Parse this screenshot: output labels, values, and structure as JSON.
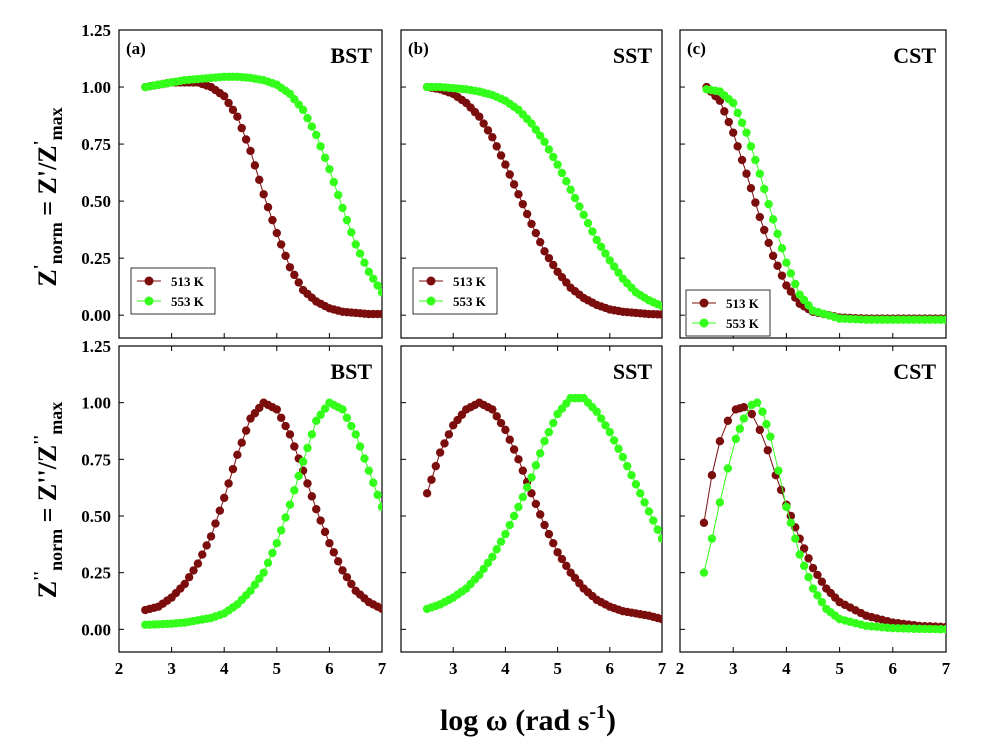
{
  "figure": {
    "xlabel_main": "log ω (rad s",
    "xlabel_sup": "-1",
    "xlabel_close": ")",
    "ylabel_top": {
      "z": "Z",
      "prime": "'",
      "sub": "norm",
      "eq": " = Z'/Z",
      "prime2": "'",
      "sub2": "max"
    },
    "ylabel_bottom": {
      "z": "Z",
      "prime": "''",
      "sub": "norm",
      "eq": " = Z''/Z",
      "prime2": "''",
      "sub2": "max"
    }
  },
  "colors": {
    "s513": "#7b0d0d",
    "s553": "#33ff1a"
  },
  "chart_data": [
    {
      "type": "line",
      "panel": "(a)",
      "title": "BST",
      "xlim": [
        2,
        7
      ],
      "ylim": [
        -0.1,
        1.25
      ],
      "yticks": [
        "0.00",
        "0.25",
        "0.50",
        "0.75",
        "1.00",
        "1.25"
      ],
      "xticks": [
        "2",
        "3",
        "4",
        "5",
        "6",
        "7"
      ],
      "legend": "bottom-left",
      "series": [
        {
          "name": "513 K",
          "x": [
            2.5,
            2.75,
            3.0,
            3.25,
            3.5,
            3.75,
            4.0,
            4.25,
            4.5,
            4.75,
            5.0,
            5.25,
            5.5,
            5.75,
            6.0,
            6.25,
            6.5,
            6.75,
            7.0
          ],
          "y": [
            1.0,
            1.01,
            1.02,
            1.02,
            1.02,
            1.0,
            0.96,
            0.87,
            0.72,
            0.53,
            0.36,
            0.21,
            0.11,
            0.06,
            0.03,
            0.015,
            0.01,
            0.005,
            0.005
          ]
        },
        {
          "name": "553 K",
          "x": [
            2.5,
            2.75,
            3.0,
            3.25,
            3.5,
            3.75,
            4.0,
            4.25,
            4.5,
            4.75,
            5.0,
            5.25,
            5.5,
            5.75,
            6.0,
            6.25,
            6.5,
            6.75,
            7.0
          ],
          "y": [
            1.0,
            1.01,
            1.02,
            1.03,
            1.035,
            1.04,
            1.045,
            1.045,
            1.04,
            1.03,
            1.01,
            0.97,
            0.9,
            0.79,
            0.64,
            0.47,
            0.31,
            0.19,
            0.1
          ]
        }
      ]
    },
    {
      "type": "line",
      "panel": "(b)",
      "title": "SST",
      "xlim": [
        2,
        7
      ],
      "ylim": [
        -0.1,
        1.25
      ],
      "xticks": [
        "3",
        "4",
        "5",
        "6",
        "7"
      ],
      "legend": "bottom-left",
      "series": [
        {
          "name": "513 K",
          "x": [
            2.5,
            2.75,
            3.0,
            3.25,
            3.5,
            3.75,
            4.0,
            4.25,
            4.5,
            4.75,
            5.0,
            5.25,
            5.5,
            5.75,
            6.0,
            6.25,
            6.5,
            6.75,
            7.0
          ],
          "y": [
            1.0,
            0.99,
            0.97,
            0.93,
            0.87,
            0.78,
            0.66,
            0.53,
            0.4,
            0.28,
            0.19,
            0.12,
            0.075,
            0.045,
            0.025,
            0.015,
            0.01,
            0.005,
            0.003
          ]
        },
        {
          "name": "553 K",
          "x": [
            2.5,
            2.75,
            3.0,
            3.25,
            3.5,
            3.75,
            4.0,
            4.25,
            4.5,
            4.75,
            5.0,
            5.25,
            5.5,
            5.75,
            6.0,
            6.25,
            6.5,
            6.75,
            7.0
          ],
          "y": [
            1.0,
            1.0,
            0.995,
            0.99,
            0.98,
            0.965,
            0.94,
            0.9,
            0.84,
            0.76,
            0.66,
            0.55,
            0.44,
            0.33,
            0.24,
            0.16,
            0.1,
            0.065,
            0.04
          ]
        }
      ]
    },
    {
      "type": "line",
      "panel": "(c)",
      "title": "CST",
      "xlim": [
        2,
        7
      ],
      "ylim": [
        -0.1,
        1.25
      ],
      "xticks": [
        "3",
        "4",
        "5",
        "6",
        "7"
      ],
      "legend": "bottom-left",
      "series": [
        {
          "name": "513 K",
          "x": [
            2.5,
            2.75,
            3.0,
            3.25,
            3.5,
            3.75,
            4.0,
            4.25,
            4.5,
            5.0,
            5.5,
            6.0,
            6.5,
            7.0
          ],
          "y": [
            1.0,
            0.94,
            0.8,
            0.62,
            0.43,
            0.26,
            0.13,
            0.05,
            0.015,
            -0.01,
            -0.015,
            -0.015,
            -0.015,
            -0.015
          ]
        },
        {
          "name": "553 K",
          "x": [
            2.5,
            2.75,
            3.0,
            3.25,
            3.5,
            3.75,
            4.0,
            4.25,
            4.5,
            5.0,
            5.5,
            6.0,
            6.5,
            7.0
          ],
          "y": [
            0.99,
            0.98,
            0.93,
            0.8,
            0.62,
            0.42,
            0.23,
            0.09,
            0.02,
            -0.015,
            -0.02,
            -0.02,
            -0.02,
            -0.02
          ]
        }
      ]
    },
    {
      "type": "line",
      "panel": "",
      "title": "BST",
      "xlim": [
        2,
        7
      ],
      "ylim": [
        -0.1,
        1.25
      ],
      "yticks": [
        "0.00",
        "0.25",
        "0.50",
        "0.75",
        "1.00",
        "1.25"
      ],
      "xticks": [
        "2",
        "3",
        "4",
        "5",
        "6",
        "7"
      ],
      "series": [
        {
          "name": "513 K",
          "x": [
            2.5,
            2.75,
            3.0,
            3.25,
            3.5,
            3.75,
            4.0,
            4.25,
            4.5,
            4.75,
            5.0,
            5.25,
            5.5,
            5.75,
            6.0,
            6.25,
            6.5,
            6.75,
            7.0
          ],
          "y": [
            0.085,
            0.1,
            0.14,
            0.2,
            0.29,
            0.41,
            0.58,
            0.77,
            0.93,
            1.0,
            0.97,
            0.86,
            0.7,
            0.53,
            0.38,
            0.26,
            0.17,
            0.12,
            0.09
          ]
        },
        {
          "name": "553 K",
          "x": [
            2.5,
            2.75,
            3.0,
            3.25,
            3.5,
            3.75,
            4.0,
            4.25,
            4.5,
            4.75,
            5.0,
            5.25,
            5.5,
            5.75,
            6.0,
            6.25,
            6.5,
            6.75,
            7.0
          ],
          "y": [
            0.02,
            0.022,
            0.025,
            0.03,
            0.04,
            0.05,
            0.07,
            0.11,
            0.17,
            0.25,
            0.38,
            0.55,
            0.74,
            0.92,
            1.0,
            0.97,
            0.86,
            0.7,
            0.54
          ]
        }
      ]
    },
    {
      "type": "line",
      "panel": "",
      "title": "SST",
      "xlim": [
        2,
        7
      ],
      "ylim": [
        -0.1,
        1.25
      ],
      "xticks": [
        "3",
        "4",
        "5",
        "6",
        "7"
      ],
      "series": [
        {
          "name": "513 K",
          "x": [
            2.5,
            2.75,
            3.0,
            3.25,
            3.5,
            3.75,
            4.0,
            4.25,
            4.5,
            4.75,
            5.0,
            5.25,
            5.5,
            5.75,
            6.0,
            6.25,
            6.5,
            6.75,
            7.0
          ],
          "y": [
            0.6,
            0.78,
            0.9,
            0.97,
            1.0,
            0.97,
            0.88,
            0.75,
            0.6,
            0.46,
            0.34,
            0.25,
            0.18,
            0.13,
            0.1,
            0.08,
            0.07,
            0.06,
            0.045
          ]
        },
        {
          "name": "553 K",
          "x": [
            2.5,
            2.75,
            3.0,
            3.25,
            3.5,
            3.75,
            4.0,
            4.25,
            4.5,
            4.75,
            5.0,
            5.25,
            5.5,
            5.75,
            6.0,
            6.25,
            6.5,
            6.75,
            7.0
          ],
          "y": [
            0.09,
            0.11,
            0.14,
            0.18,
            0.24,
            0.32,
            0.42,
            0.54,
            0.67,
            0.83,
            0.95,
            1.02,
            1.02,
            0.96,
            0.87,
            0.76,
            0.64,
            0.52,
            0.4
          ]
        }
      ]
    },
    {
      "type": "line",
      "panel": "",
      "title": "CST",
      "xlim": [
        2,
        7
      ],
      "ylim": [
        -0.1,
        1.25
      ],
      "xticks": [
        "2",
        "3",
        "4",
        "5",
        "6",
        "7"
      ],
      "series": [
        {
          "name": "513 K",
          "x": [
            2.45,
            2.6,
            2.75,
            2.9,
            3.05,
            3.2,
            3.35,
            3.5,
            3.65,
            3.8,
            4.0,
            4.25,
            4.5,
            4.75,
            5.0,
            5.5,
            6.0,
            6.5,
            7.0
          ],
          "y": [
            0.47,
            0.68,
            0.83,
            0.92,
            0.97,
            0.98,
            0.95,
            0.88,
            0.79,
            0.68,
            0.55,
            0.4,
            0.27,
            0.18,
            0.12,
            0.06,
            0.03,
            0.015,
            0.01
          ]
        },
        {
          "name": "553 K",
          "x": [
            2.45,
            2.6,
            2.75,
            2.9,
            3.05,
            3.2,
            3.35,
            3.45,
            3.55,
            3.7,
            3.85,
            4.0,
            4.25,
            4.5,
            4.75,
            5.0,
            5.5,
            6.0,
            6.5,
            7.0
          ],
          "y": [
            0.25,
            0.4,
            0.56,
            0.71,
            0.84,
            0.93,
            0.99,
            1.0,
            0.96,
            0.85,
            0.7,
            0.54,
            0.33,
            0.18,
            0.09,
            0.045,
            0.015,
            0.005,
            0.002,
            0.0
          ]
        }
      ]
    }
  ]
}
